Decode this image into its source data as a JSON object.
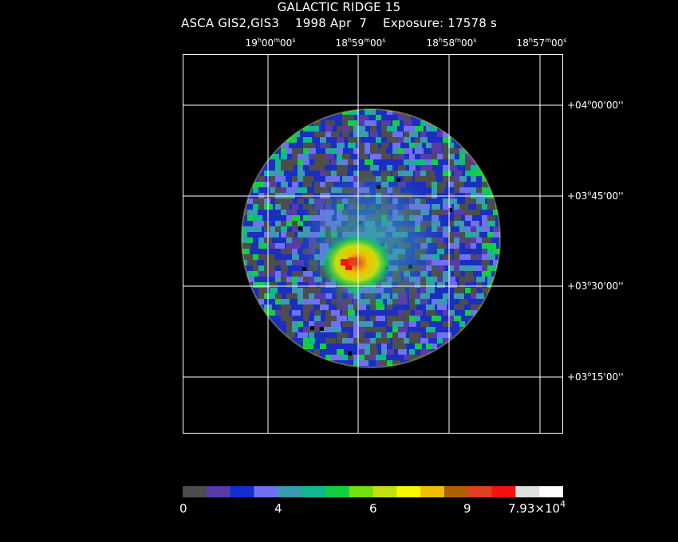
{
  "header": {
    "title": "GALACTIC RIDGE 15",
    "instrument": "ASCA GIS2,GIS3",
    "date": "1998 Apr  7",
    "exposure": "Exposure: 17578 s"
  },
  "ra_axis": {
    "ticks": [
      {
        "h": "19",
        "m": "00",
        "s": "00"
      },
      {
        "h": "18",
        "m": "59",
        "s": "00"
      },
      {
        "h": "18",
        "m": "58",
        "s": "00"
      },
      {
        "h": "18",
        "m": "57",
        "s": "00"
      }
    ]
  },
  "dec_axis": {
    "ticks": [
      {
        "d": "+04",
        "m": "00",
        "s": "00"
      },
      {
        "d": "+03",
        "m": "45",
        "s": "00"
      },
      {
        "d": "+03",
        "m": "30",
        "s": "00"
      },
      {
        "d": "+03",
        "m": "15",
        "s": "00"
      }
    ]
  },
  "colorbar": {
    "colors": [
      "#4d4d4d",
      "#5a3aa8",
      "#1030d0",
      "#7070f0",
      "#3a9ab0",
      "#10b890",
      "#10d040",
      "#70e010",
      "#c0e010",
      "#f8f800",
      "#f0c000",
      "#b06000",
      "#e04020",
      "#f81010",
      "#e0e0e0",
      "#ffffff"
    ],
    "labels": [
      "0",
      "4",
      "6",
      "9"
    ],
    "max_label_mantissa": "7.93×10",
    "max_label_exponent": "4"
  }
}
